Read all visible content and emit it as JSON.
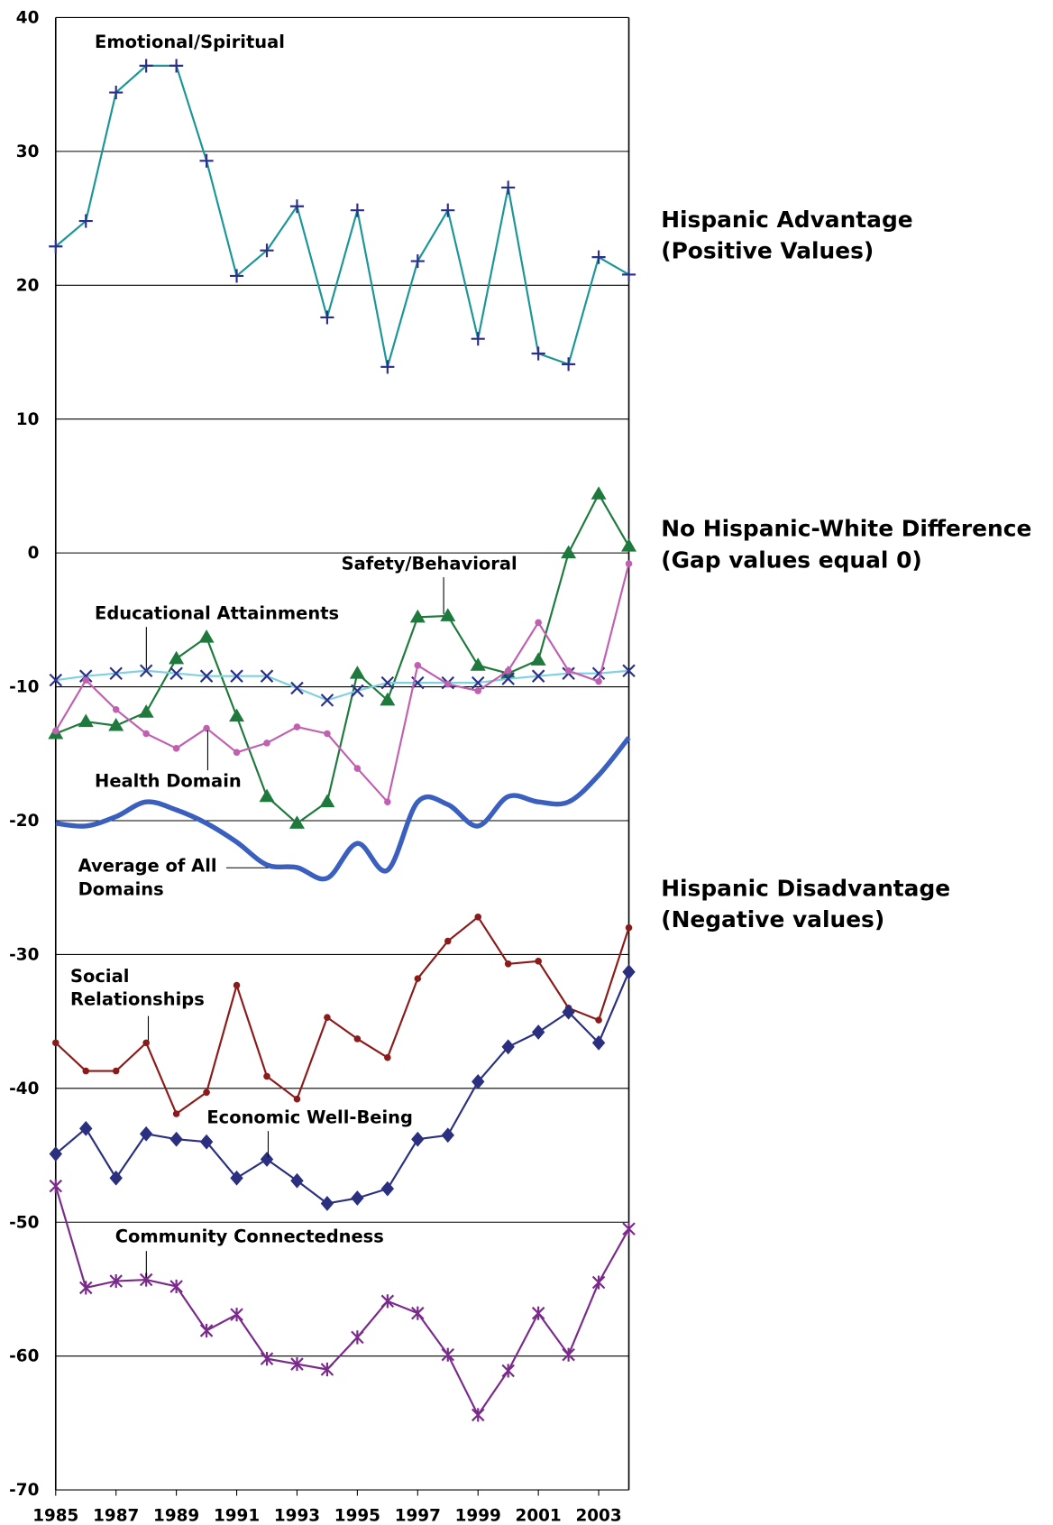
{
  "chart_data": {
    "type": "line",
    "x": [
      1985,
      1986,
      1987,
      1988,
      1989,
      1990,
      1991,
      1992,
      1993,
      1994,
      1995,
      1996,
      1997,
      1998,
      1999,
      2000,
      2001,
      2002,
      2003,
      2004
    ],
    "xlim": [
      1985,
      2004
    ],
    "xticks": [
      1985,
      1987,
      1989,
      1991,
      1993,
      1995,
      1997,
      1999,
      2001,
      2003
    ],
    "ylim": [
      -70,
      40
    ],
    "yticks": [
      -70,
      -60,
      -50,
      -40,
      -30,
      -20,
      -10,
      0,
      10,
      20,
      30,
      40
    ],
    "grid": true,
    "series": [
      {
        "name": "Emotional/Spiritual",
        "color": "#1a9696",
        "marker": "plus",
        "marker_color": "#2a2f8a",
        "values": [
          22.9,
          24.8,
          34.4,
          36.4,
          36.4,
          29.3,
          20.7,
          22.6,
          25.9,
          17.6,
          25.6,
          13.9,
          21.8,
          25.6,
          16.0,
          27.3,
          14.9,
          14.1,
          22.1,
          20.8
        ]
      },
      {
        "name": "Safety/Behavioral",
        "color": "#1e7a3c",
        "marker": "triangle",
        "marker_color": "#1e7a3c",
        "values": [
          -13.5,
          -12.6,
          -12.9,
          -11.9,
          -7.9,
          -6.3,
          -12.2,
          -18.2,
          -20.2,
          -18.6,
          -9.0,
          -11.0,
          -4.8,
          -4.7,
          -8.4,
          -9.0,
          -8.0,
          0,
          4.4,
          0.5
        ]
      },
      {
        "name": "Educational Attainments",
        "color": "#7fd0e0",
        "marker": "cross",
        "marker_color": "#2a2f8a",
        "values": [
          -9.5,
          -9.2,
          -9.0,
          -8.8,
          -9.0,
          -9.2,
          -9.2,
          -9.2,
          -10.1,
          -11.0,
          -10.3,
          -9.7,
          -9.7,
          -9.7,
          -9.7,
          -9.4,
          -9.2,
          -9.0,
          -9.0,
          -8.8
        ]
      },
      {
        "name": "Health Domain",
        "color": "#c060b0",
        "marker": "circle",
        "marker_color": "#c060b0",
        "values": [
          -13.3,
          -9.5,
          -11.7,
          -13.5,
          -14.6,
          -13.1,
          -14.9,
          -14.2,
          -13.0,
          -13.5,
          -16.1,
          -18.6,
          -8.4,
          -9.8,
          -10.3,
          -8.8,
          -5.2,
          -8.8,
          -9.6,
          -0.8
        ]
      },
      {
        "name": "Average of All\nDomains",
        "color": "#3a5fbf",
        "marker": "none",
        "smooth": true,
        "width": 5,
        "values": [
          -20.2,
          -20.4,
          -19.7,
          -18.6,
          -19.2,
          -20.2,
          -21.6,
          -23.3,
          -23.5,
          -24.3,
          -21.7,
          -23.7,
          -18.6,
          -18.8,
          -20.4,
          -18.2,
          -18.6,
          -18.6,
          -16.6,
          -13.8
        ]
      },
      {
        "name": "Social\nRelationships",
        "color": "#8b1a1a",
        "marker": "circle",
        "marker_color": "#8b1a1a",
        "values": [
          -36.6,
          -38.7,
          -38.7,
          -36.6,
          -41.9,
          -40.3,
          -32.3,
          -39.1,
          -40.8,
          -34.7,
          -36.3,
          -37.7,
          -31.8,
          -29.0,
          -27.2,
          -30.7,
          -30.5,
          -34.0,
          -34.9,
          -28.0
        ]
      },
      {
        "name": "Economic Well-Being",
        "color": "#2a2f80",
        "marker": "diamond",
        "marker_color": "#2a2f80",
        "values": [
          -44.9,
          -43.0,
          -46.7,
          -43.4,
          -43.8,
          -44.0,
          -46.7,
          -45.3,
          -46.9,
          -48.6,
          -48.2,
          -47.5,
          -43.8,
          -43.5,
          -39.5,
          -36.9,
          -35.8,
          -34.3,
          -36.6,
          -31.3
        ]
      },
      {
        "name": "Community  Connectedness",
        "color": "#7a2a8a",
        "marker": "asterisk",
        "marker_color": "#7a2a8a",
        "values": [
          -47.3,
          -54.9,
          -54.4,
          -54.3,
          -54.8,
          -58.1,
          -56.9,
          -60.2,
          -60.6,
          -61.0,
          -58.6,
          -55.9,
          -56.8,
          -59.9,
          -64.4,
          -61.1,
          -56.8,
          -59.9,
          -54.5,
          -50.5
        ]
      }
    ],
    "annotations": [
      "Hispanic Advantage\n(Positive Values)",
      "No Hispanic-White Difference\n(Gap values equal 0)",
      "Hispanic Disadvantage\n(Negative values)"
    ]
  }
}
